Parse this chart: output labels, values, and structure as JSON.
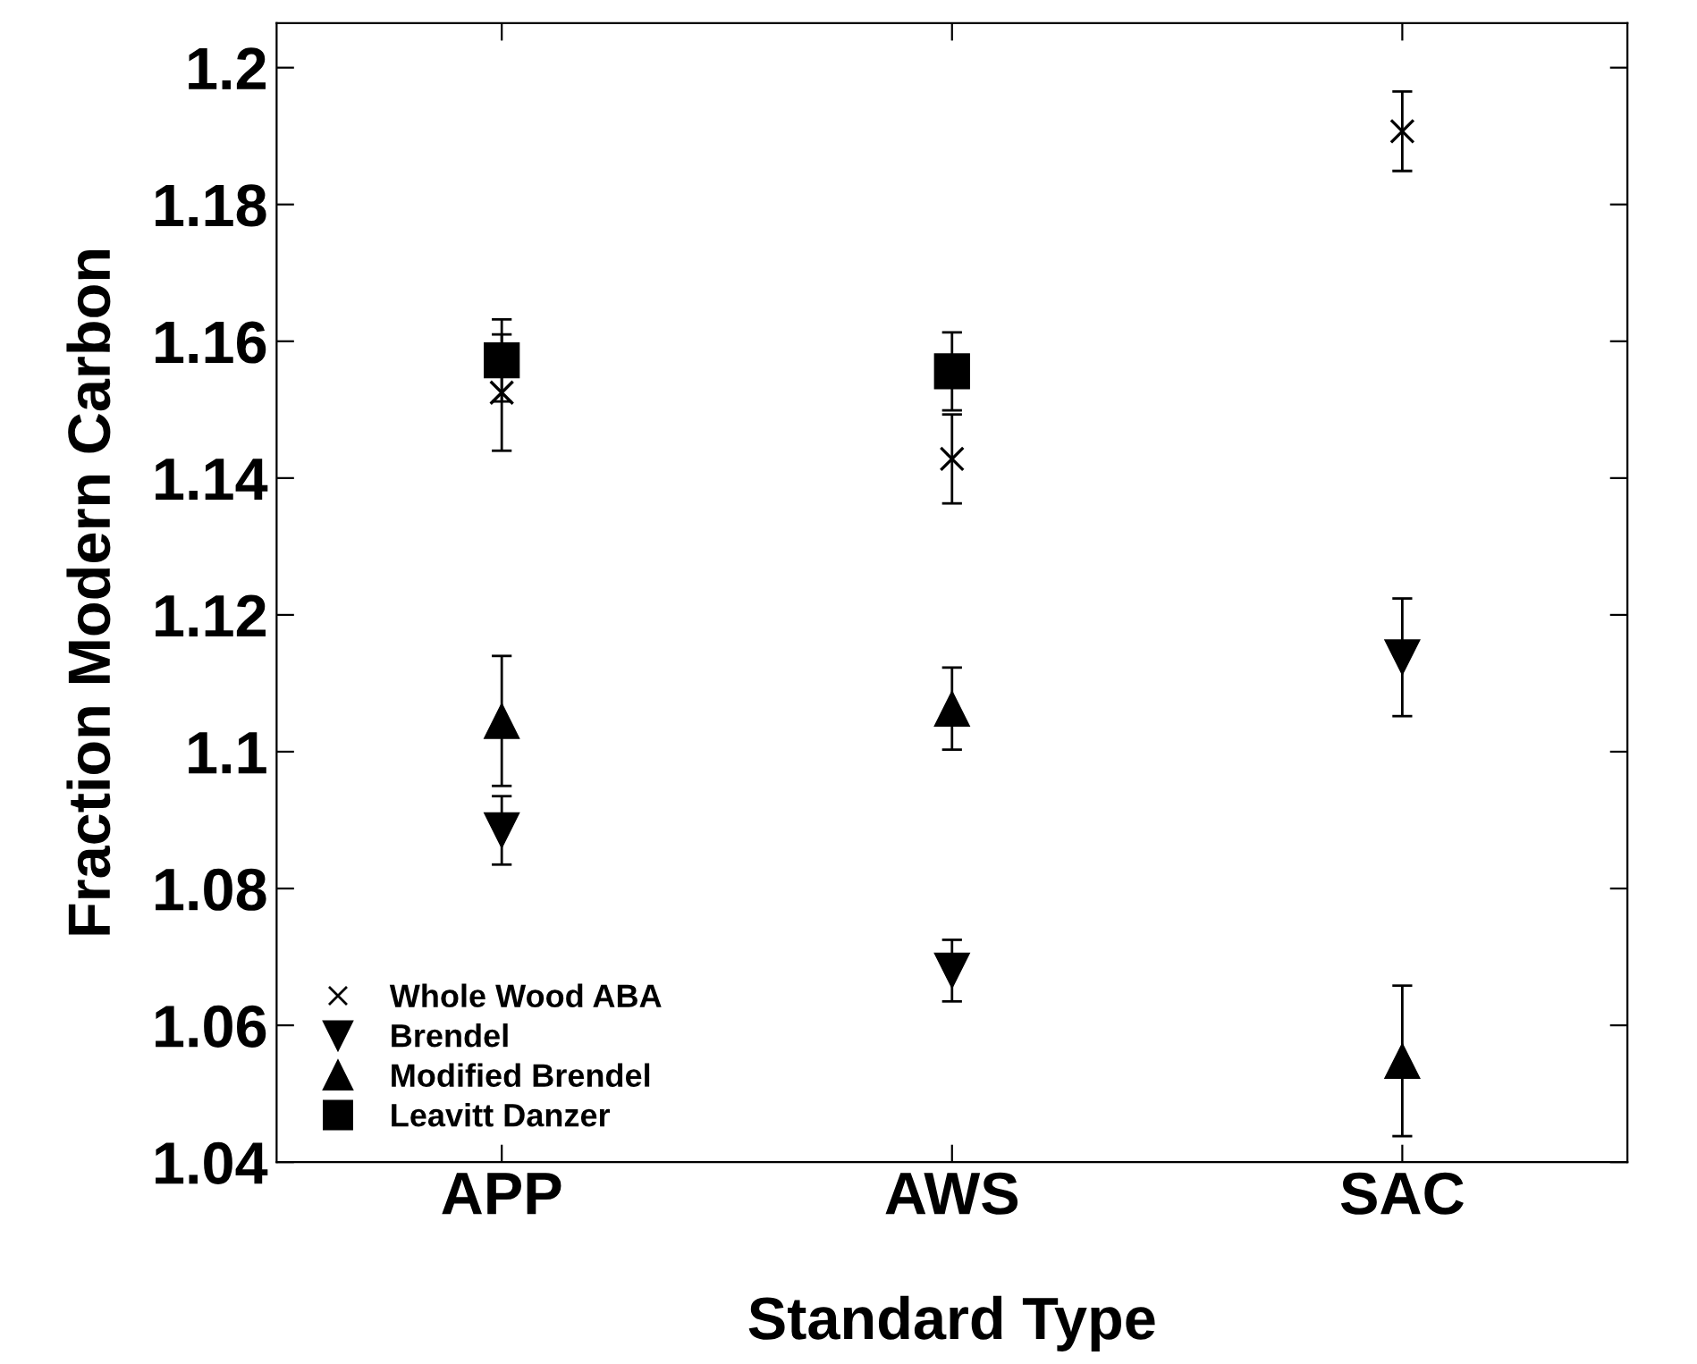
{
  "chart_data": {
    "type": "scatter",
    "xlabel": "Standard Type",
    "ylabel": "Fraction Modern Carbon",
    "categories": [
      "APP",
      "AWS",
      "SAC"
    ],
    "series": [
      {
        "name": "Whole Wood ABA",
        "color": "#000000",
        "marker": "cross",
        "values": [
          1.1525,
          1.1428,
          1.1907
        ],
        "errors": [
          0.0085,
          0.0065,
          0.0058
        ]
      },
      {
        "name": "Brendel",
        "color": "#000000",
        "marker": "triangle_down",
        "values": [
          1.0885,
          1.068,
          1.1138
        ],
        "errors": [
          0.005,
          0.0045,
          0.0086
        ]
      },
      {
        "name": "Modified Brendel",
        "color": "#000000",
        "marker": "triangle",
        "values": [
          1.1045,
          1.1063,
          1.0548
        ],
        "errors": [
          0.0095,
          0.006,
          0.011
        ]
      },
      {
        "name": "Leavitt Danzer",
        "color": "#000000",
        "marker": "square",
        "values": [
          1.1572,
          1.1556,
          null
        ],
        "errors": [
          0.006,
          0.0057,
          null
        ]
      }
    ],
    "ylim": [
      1.04,
      1.2065
    ],
    "yticks": [
      1.04,
      1.06,
      1.08,
      1.1,
      1.12,
      1.14,
      1.16,
      1.18,
      1.2
    ],
    "grid": false,
    "legend": "bottom left"
  }
}
